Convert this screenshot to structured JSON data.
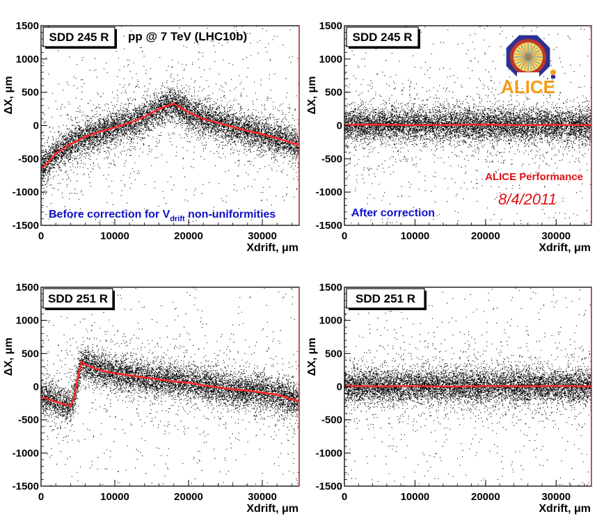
{
  "colors": {
    "frame": "#000000",
    "points": "#000000",
    "profile": "#ff2a2a",
    "right_edge": "#c0392b",
    "blue_text": "#1010c8",
    "red_text": "#e01010",
    "alice_orange": "#f39c12",
    "alice_blue": "#2e3192"
  },
  "alice_logo": {
    "text": "ALICE",
    "icon": "alice-logo-icon"
  },
  "annotations": {
    "energy": "pp @ 7 TeV (LHC10b)",
    "before_prefix": "Before correction for V",
    "before_sub": "drift",
    "before_suffix": " non-uniformities",
    "after": "After correction",
    "performance": "ALICE Performance",
    "date": "8/4/2011"
  },
  "chart_data": [
    {
      "type": "scatter",
      "panel": "top-left",
      "title": "SDD 245 R",
      "xlabel": "Xdrift, μm",
      "ylabel": "ΔX, μm",
      "xlim": [
        0,
        35000
      ],
      "ylim": [
        -1500,
        1500
      ],
      "x_ticks": [
        0,
        10000,
        20000,
        30000
      ],
      "y_ticks": [
        -1500,
        -1000,
        -500,
        0,
        500,
        1000,
        1500
      ],
      "series": [
        {
          "x": [
            0,
            1000,
            2000,
            4000,
            6000,
            8000,
            10000,
            12000,
            14000,
            16000,
            18000,
            20000,
            22000,
            24000,
            26000,
            28000,
            30000,
            32000,
            34000,
            35000
          ],
          "y": [
            -650,
            -550,
            -420,
            -280,
            -170,
            -90,
            -30,
            40,
            130,
            250,
            330,
            200,
            100,
            40,
            -20,
            -80,
            -130,
            -190,
            -260,
            -290
          ]
        }
      ]
    },
    {
      "type": "scatter",
      "panel": "top-right",
      "title": "SDD 245 R",
      "xlabel": "Xdrift, μm",
      "ylabel": "ΔX, μm",
      "xlim": [
        0,
        35000
      ],
      "ylim": [
        -1500,
        1500
      ],
      "x_ticks": [
        0,
        10000,
        20000,
        30000
      ],
      "y_ticks": [
        -1500,
        -1000,
        -500,
        0,
        500,
        1000,
        1500
      ],
      "series": [
        {
          "x": [
            0,
            5000,
            10000,
            15000,
            20000,
            25000,
            30000,
            35000
          ],
          "y": [
            10,
            15,
            5,
            10,
            15,
            5,
            10,
            5
          ]
        }
      ]
    },
    {
      "type": "scatter",
      "panel": "bottom-left",
      "title": "SDD 251 R",
      "xlabel": "Xdrift, μm",
      "ylabel": "ΔX, μm",
      "xlim": [
        0,
        35000
      ],
      "ylim": [
        -1500,
        1500
      ],
      "x_ticks": [
        0,
        10000,
        20000,
        30000
      ],
      "y_ticks": [
        -1500,
        -1000,
        -500,
        0,
        500,
        1000,
        1500
      ],
      "series": [
        {
          "x": [
            0,
            1000,
            2000,
            3000,
            4000,
            4500,
            5000,
            5500,
            6000,
            8000,
            10000,
            12000,
            14000,
            16000,
            18000,
            20000,
            22000,
            24000,
            26000,
            28000,
            30000,
            32000,
            34000,
            35000
          ],
          "y": [
            -150,
            -190,
            -230,
            -260,
            -290,
            -150,
            150,
            380,
            330,
            250,
            200,
            170,
            140,
            110,
            80,
            60,
            20,
            -10,
            -40,
            -60,
            -90,
            -120,
            -190,
            -220
          ]
        }
      ]
    },
    {
      "type": "scatter",
      "panel": "bottom-right",
      "title": "SDD 251 R",
      "xlabel": "Xdrift, μm",
      "ylabel": "ΔX, μm",
      "xlim": [
        0,
        35000
      ],
      "ylim": [
        -1500,
        1500
      ],
      "x_ticks": [
        0,
        10000,
        20000,
        30000
      ],
      "y_ticks": [
        -1500,
        -1000,
        -500,
        0,
        500,
        1000,
        1500
      ],
      "series": [
        {
          "x": [
            0,
            5000,
            10000,
            15000,
            20000,
            25000,
            30000,
            35000
          ],
          "y": [
            10,
            5,
            10,
            0,
            10,
            5,
            10,
            5
          ]
        }
      ]
    }
  ]
}
